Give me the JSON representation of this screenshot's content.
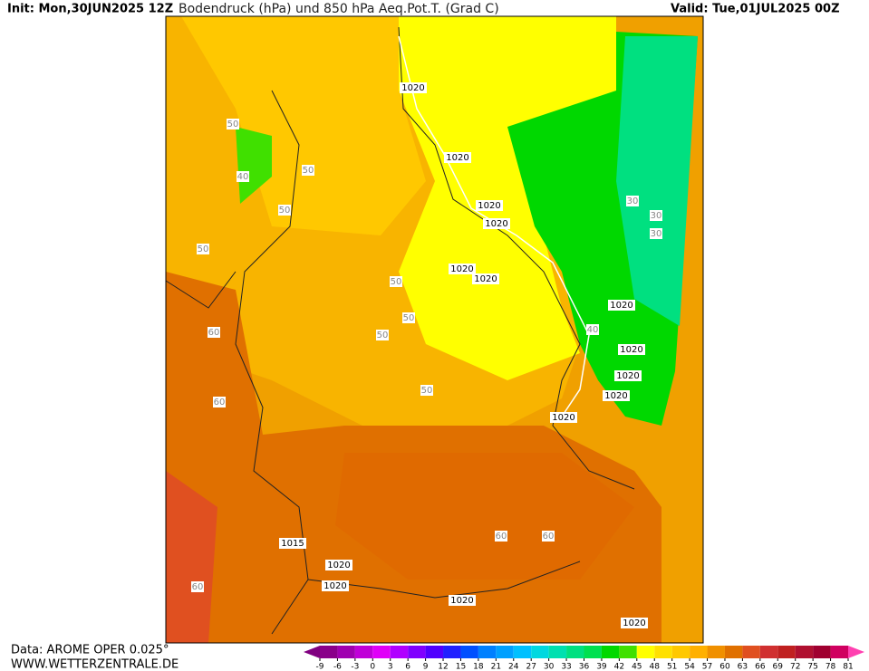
{
  "header": {
    "init": "Init: Mon,30JUN2025 12Z",
    "title": "Bodendruck (hPa) und 850 hPa Aeq.Pot.T. (Grad C)",
    "valid": "Valid: Tue,01JUL2025 00Z"
  },
  "footer": {
    "source": "Data: AROME OPER 0.025°",
    "site": "WWW.WETTERZENTRALE.DE"
  },
  "colorbar": {
    "ticks": [
      -9,
      -6,
      -3,
      0,
      3,
      6,
      9,
      12,
      15,
      18,
      21,
      24,
      27,
      30,
      33,
      36,
      39,
      42,
      45,
      48,
      51,
      54,
      57,
      60,
      63,
      66,
      69,
      72,
      75,
      78,
      81
    ],
    "colors": [
      "#800080",
      "#8a008a",
      "#a000b0",
      "#c000d8",
      "#e000f8",
      "#b000ff",
      "#8000ff",
      "#5000ff",
      "#2020ff",
      "#0050ff",
      "#0080ff",
      "#00a0ff",
      "#00c0ff",
      "#00d8e0",
      "#00e0b0",
      "#00e080",
      "#00e050",
      "#00d800",
      "#40e000",
      "#ffff00",
      "#ffe000",
      "#ffc800",
      "#ffb000",
      "#f09000",
      "#e07000",
      "#e05020",
      "#d03030",
      "#c02020",
      "#b01030",
      "#a00030",
      "#d00060",
      "#ff40b0"
    ]
  },
  "map": {
    "contour_labels": [
      "1020",
      "1020",
      "1020",
      "1020",
      "1020",
      "1020",
      "1020",
      "1020",
      "1020",
      "1020",
      "1020",
      "1015",
      "1020",
      "1020",
      "1020",
      "1020",
      "50",
      "50",
      "50",
      "50",
      "50",
      "50",
      "50",
      "50",
      "60",
      "60",
      "60",
      "60",
      "60",
      "30",
      "30",
      "30",
      "40",
      "40"
    ]
  }
}
